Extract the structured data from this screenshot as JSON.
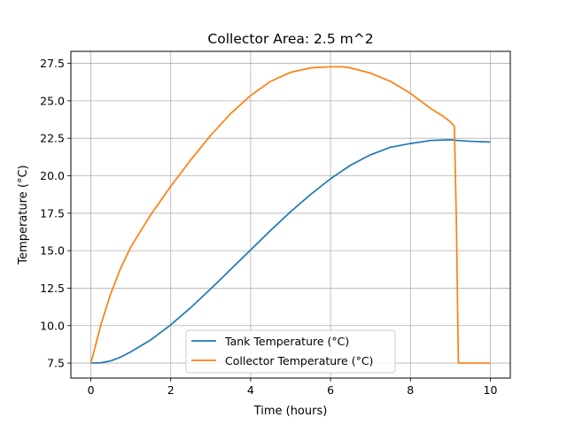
{
  "chart_data": {
    "type": "line",
    "title": "Collector Area: 2.5 m^2",
    "xlabel": "Time (hours)",
    "ylabel": "Temperature (°C)",
    "xlim": [
      -0.5,
      10.5
    ],
    "ylim": [
      6.5,
      28.3
    ],
    "xticks": [
      0,
      2,
      4,
      6,
      8,
      10
    ],
    "xtick_labels": [
      "0",
      "2",
      "4",
      "6",
      "8",
      "10"
    ],
    "yticks": [
      7.5,
      10.0,
      12.5,
      15.0,
      17.5,
      20.0,
      22.5,
      25.0,
      27.5
    ],
    "ytick_labels": [
      "7.5",
      "10.0",
      "12.5",
      "15.0",
      "17.5",
      "20.0",
      "22.5",
      "25.0",
      "27.5"
    ],
    "grid": true,
    "legend_position": "lower center",
    "series": [
      {
        "name": "Tank Temperature (°C)",
        "color": "#1f77b4",
        "x": [
          0,
          0.25,
          0.5,
          0.75,
          1.0,
          1.5,
          2.0,
          2.5,
          3.0,
          3.5,
          4.0,
          4.5,
          5.0,
          5.5,
          6.0,
          6.5,
          7.0,
          7.5,
          8.0,
          8.5,
          9.0,
          9.2,
          9.5,
          10.0
        ],
        "y": [
          7.5,
          7.52,
          7.65,
          7.9,
          8.25,
          9.05,
          10.05,
          11.2,
          12.45,
          13.75,
          15.05,
          16.35,
          17.6,
          18.75,
          19.8,
          20.7,
          21.4,
          21.9,
          22.15,
          22.35,
          22.4,
          22.35,
          22.3,
          22.25
        ]
      },
      {
        "name": "Collector Temperature (°C)",
        "color": "#ff7f0e",
        "x": [
          0,
          0.1,
          0.25,
          0.5,
          0.75,
          1.0,
          1.5,
          2.0,
          2.5,
          3.0,
          3.5,
          4.0,
          4.5,
          5.0,
          5.5,
          6.0,
          6.3,
          6.5,
          7.0,
          7.5,
          8.0,
          8.5,
          8.8,
          9.0,
          9.1,
          9.15,
          9.2,
          10.0
        ],
        "y": [
          7.5,
          8.5,
          10.05,
          12.15,
          13.85,
          15.25,
          17.4,
          19.3,
          21.05,
          22.7,
          24.15,
          25.35,
          26.3,
          26.9,
          27.2,
          27.27,
          27.27,
          27.2,
          26.85,
          26.3,
          25.5,
          24.5,
          24.0,
          23.6,
          23.3,
          17.0,
          7.5,
          7.5
        ]
      }
    ]
  }
}
